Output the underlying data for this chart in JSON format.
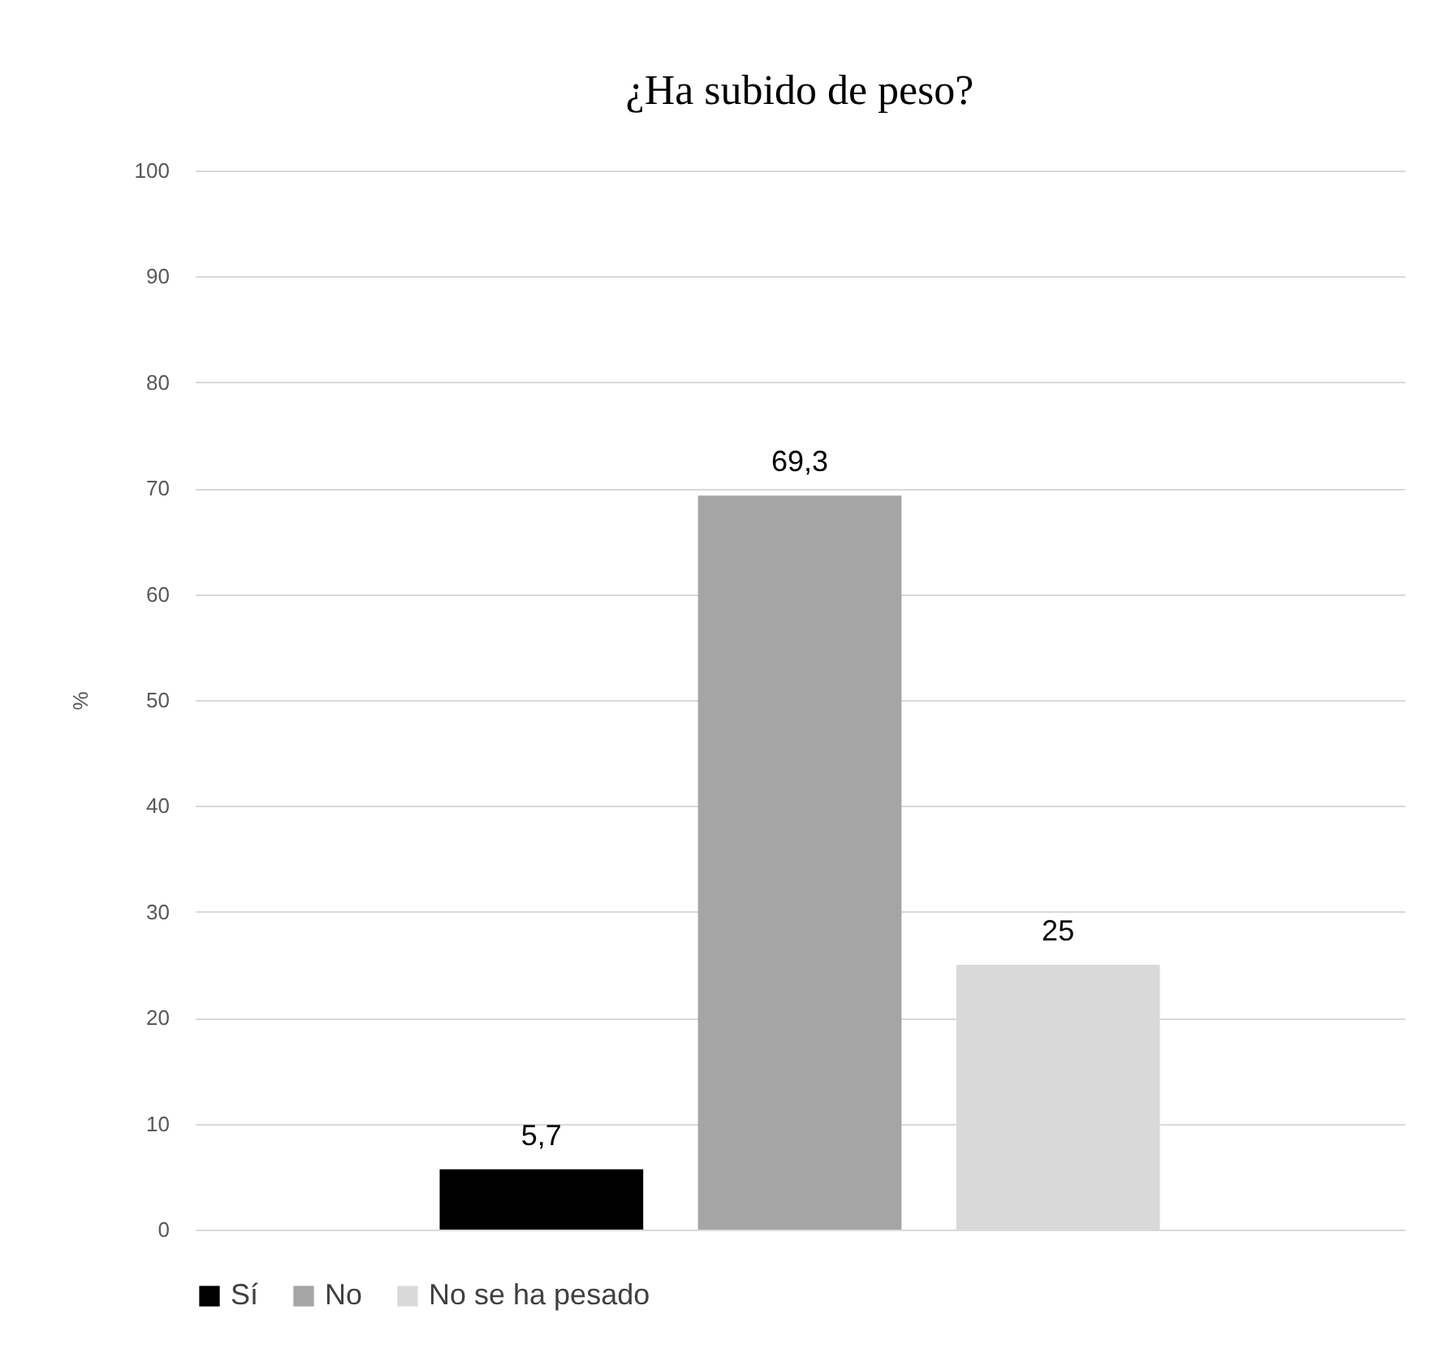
{
  "chart_data": {
    "type": "bar",
    "title": "¿Ha subido de peso?",
    "ylabel": "%",
    "categories": [
      null
    ],
    "series": [
      {
        "name": "Sí",
        "color": "#000000",
        "values": [
          5.7
        ],
        "value_labels": [
          "5,7"
        ]
      },
      {
        "name": "No",
        "color": "#a5a5a5",
        "values": [
          69.3
        ],
        "value_labels": [
          "69,3"
        ]
      },
      {
        "name": "No se ha pesado",
        "color": "#d9d9d9",
        "values": [
          25
        ],
        "value_labels": [
          "25"
        ]
      }
    ],
    "ylim": [
      0,
      100
    ],
    "yticks": [
      0,
      10,
      20,
      30,
      40,
      50,
      60,
      70,
      80,
      90,
      100
    ],
    "grid": "y",
    "legend": "bottom"
  }
}
